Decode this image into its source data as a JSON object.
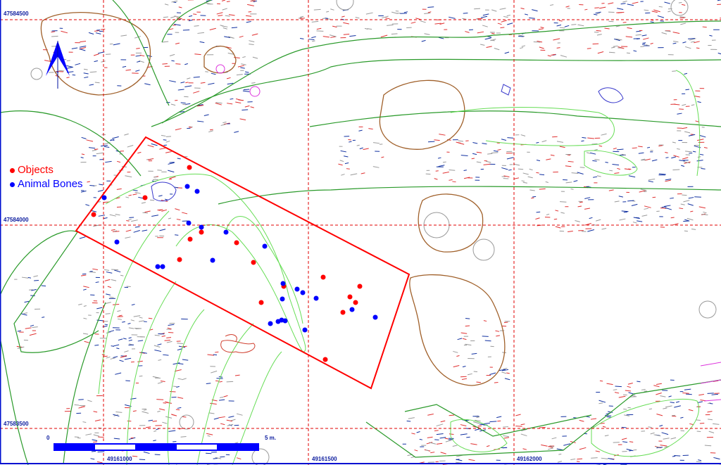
{
  "legend": {
    "items": [
      {
        "label": "Objects",
        "color": "#ff0000"
      },
      {
        "label": "Animal Bones",
        "color": "#0000ff"
      }
    ]
  },
  "grid": {
    "northings": [
      "47584500",
      "47584000",
      "47583500"
    ],
    "eastings": [
      "49161000",
      "49161500",
      "49162000"
    ]
  },
  "scale_bar": {
    "start_label": "0",
    "end_label": "5 m."
  },
  "north_arrow": "north-arrow-icon",
  "colors": {
    "grid": "#e00000",
    "contour": "#2aa02a",
    "outline": "#a0602a",
    "trench": "#ff0000",
    "objects": "#ff0000",
    "bones": "#0000ff",
    "frame": "#0010d0"
  }
}
